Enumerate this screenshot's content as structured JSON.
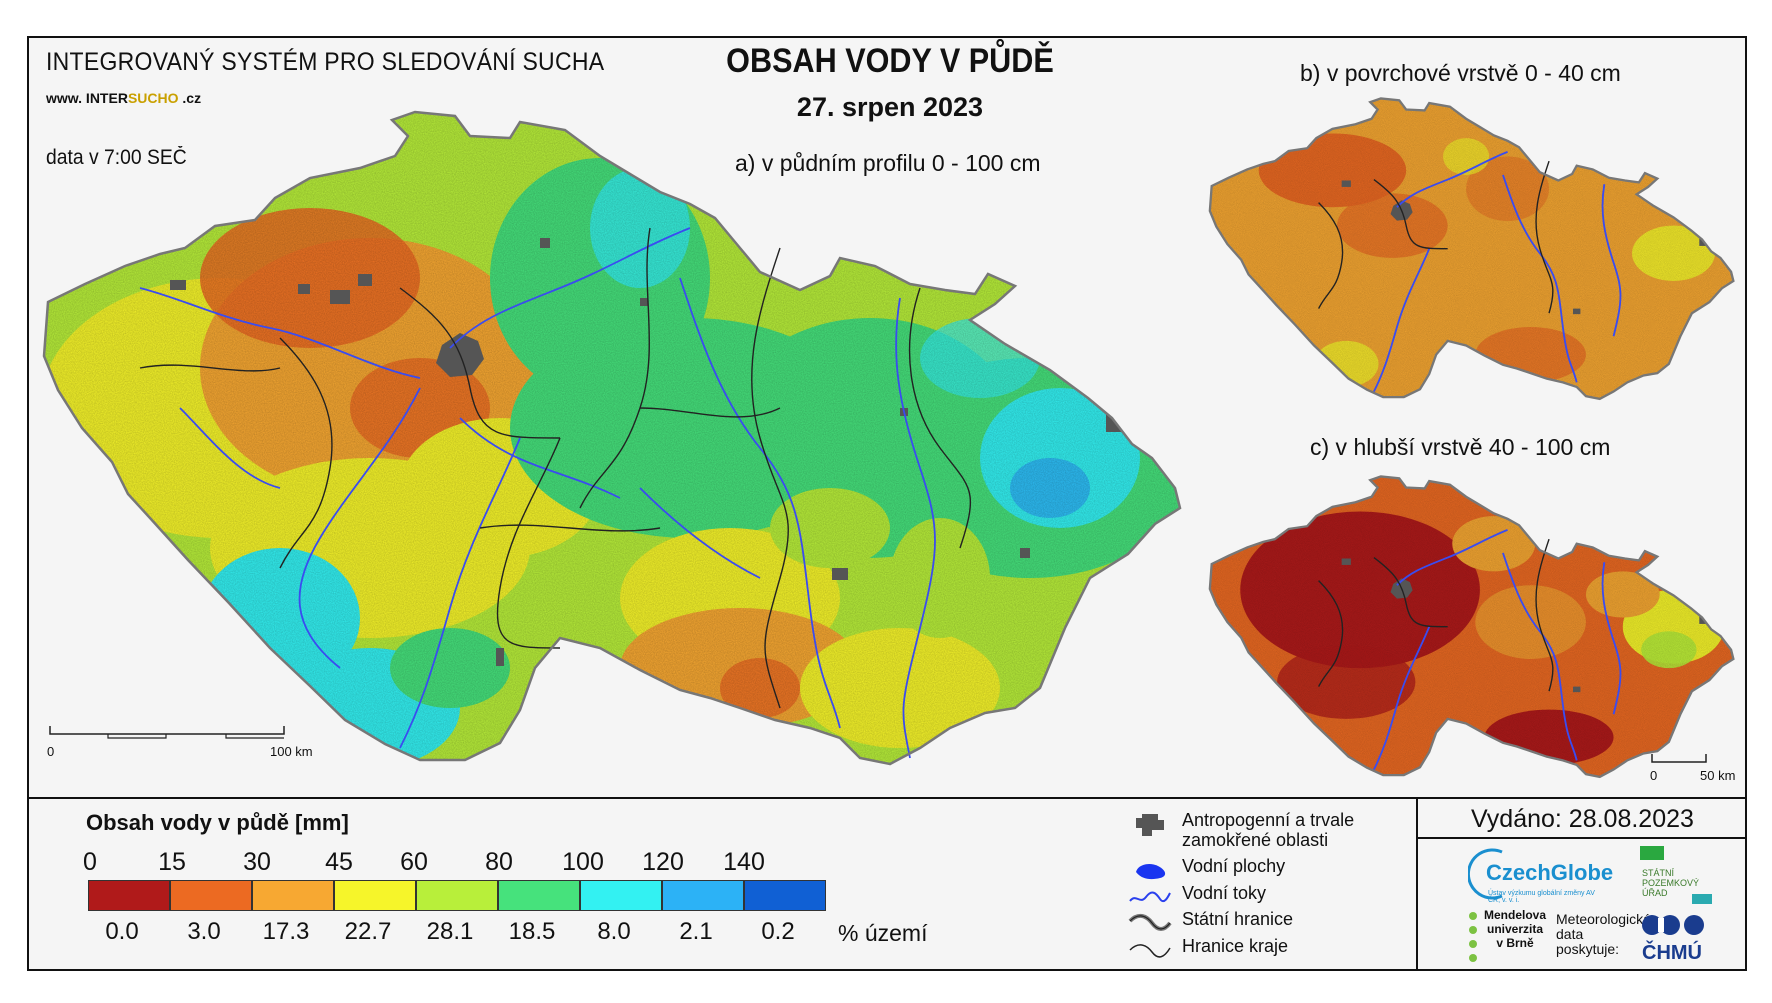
{
  "header": {
    "system_title": "INTEGROVANÝ SYSTÉM PRO SLEDOVÁNÍ SUCHA",
    "website_prefix": "www. INTER",
    "website_highlight": "SUCHO",
    "website_suffix": " .cz",
    "data_time": "data v 7:00 SEČ",
    "main_title": "OBSAH VODY V PŮDĚ",
    "date": "27. srpen 2023"
  },
  "panels": {
    "a": "a) v půdním profilu 0 - 100 cm",
    "b": "b) v povrchové vrstvě 0 - 40 cm",
    "c": "c) v hlubší vrstvě 40 - 100 cm"
  },
  "scalebars": {
    "main_start": "0",
    "main_end": "100 km",
    "small_start": "0",
    "small_end": "50 km"
  },
  "legend": {
    "title": "Obsah vody v půdě  [mm]",
    "breaks": [
      "0",
      "15",
      "30",
      "45",
      "60",
      "80",
      "100",
      "120",
      "140"
    ],
    "classes": [
      {
        "color": "#b01a1a",
        "percent": "0.0"
      },
      {
        "color": "#ec6a22",
        "percent": "3.0"
      },
      {
        "color": "#f7a832",
        "percent": "17.3"
      },
      {
        "color": "#f6f52a",
        "percent": "22.7"
      },
      {
        "color": "#b8ef3a",
        "percent": "28.1"
      },
      {
        "color": "#46e27c",
        "percent": "18.5"
      },
      {
        "color": "#33f1f2",
        "percent": "8.0"
      },
      {
        "color": "#2cb2f6",
        "percent": "2.1"
      },
      {
        "color": "#1060d4",
        "percent": "0.2"
      }
    ],
    "percent_unit": "% území"
  },
  "symbols": [
    {
      "icon": "urban-area-icon",
      "label": "Antropogenní a trvale zamokřené oblasti"
    },
    {
      "icon": "water-body-icon",
      "label": "Vodní plochy"
    },
    {
      "icon": "river-icon",
      "label": "Vodní toky"
    },
    {
      "icon": "state-border-icon",
      "label": "Státní hranice"
    },
    {
      "icon": "region-border-icon",
      "label": "Hranice kraje"
    }
  ],
  "issued": "Vydáno: 28.08.2023",
  "logos": {
    "czechglobe": "CzechGlobe",
    "czechglobe_tagline": "Ústav výzkumu globální změny AV ČR, v. v. i.",
    "spu": "STÁTNÍ POZEMKOVÝ ÚŘAD",
    "mendel": "Mendelova univerzita v Brně",
    "chmu_note": "Meteorologická data poskytuje:",
    "chmu": "ČHMÚ"
  },
  "colors": {
    "background": "#f5f5f5",
    "border": "#111111",
    "rivers": "#3a4cf0",
    "urban": "#555555"
  }
}
